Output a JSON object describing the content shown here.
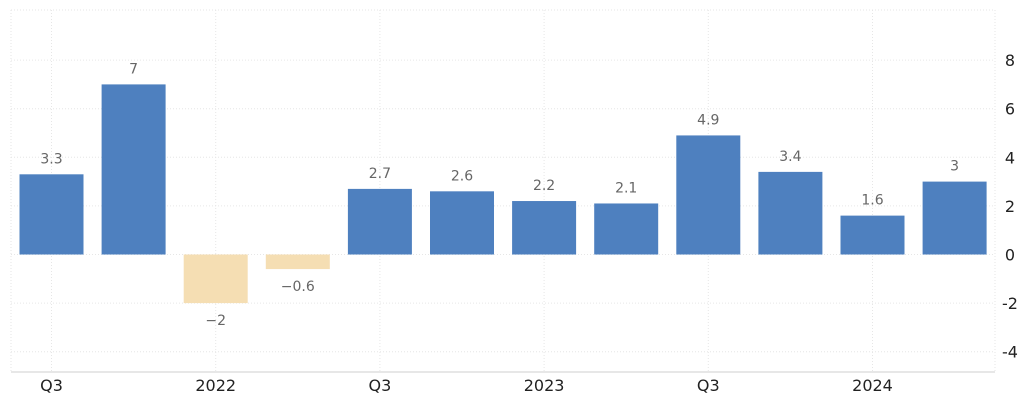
{
  "chart_data": {
    "type": "bar",
    "categories": [
      "Q3",
      "",
      "2022",
      "",
      "Q3",
      "",
      "2023",
      "",
      "Q3",
      "",
      "2024",
      ""
    ],
    "values": [
      3.3,
      7,
      -2,
      -0.6,
      2.7,
      2.6,
      2.2,
      2.1,
      4.9,
      3.4,
      1.6,
      3
    ],
    "data_labels": [
      "3.3",
      "7",
      "−2",
      "−0.6",
      "2.7",
      "2.6",
      "2.2",
      "2.1",
      "4.9",
      "3.4",
      "1.6",
      "3"
    ],
    "y_ticks": [
      8,
      6,
      4,
      2,
      0,
      -2,
      -4
    ],
    "y_tick_labels": [
      "8",
      "6",
      "4",
      "2",
      "0",
      "-2",
      "-4"
    ],
    "ylim": [
      -5,
      10
    ],
    "y_axis_side": "right",
    "grid": true,
    "colors": {
      "positive": "#4e80bf",
      "negative": "#f5deb3",
      "label": "#666666",
      "axis_label": "#222222",
      "grid": "#e6e6e6"
    }
  }
}
